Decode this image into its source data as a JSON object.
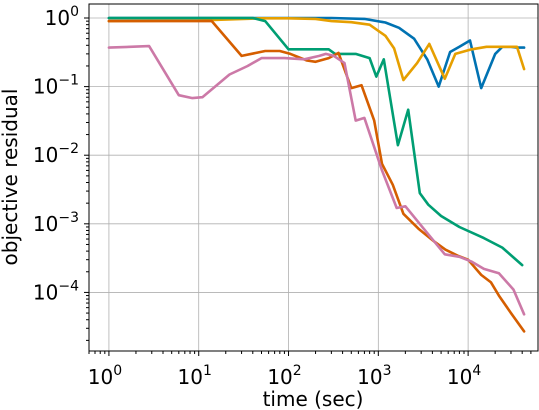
{
  "chart_data": {
    "type": "line",
    "xlabel": "time (sec)",
    "ylabel": "objective residual",
    "xscale": "log",
    "yscale": "log",
    "xlim": [
      0.6,
      60000
    ],
    "ylim": [
      1.4e-05,
      1.6
    ],
    "grid": true,
    "x_ticks": [
      {
        "base": "10",
        "exp": "0",
        "value": 1
      },
      {
        "base": "10",
        "exp": "1",
        "value": 10
      },
      {
        "base": "10",
        "exp": "2",
        "value": 100
      },
      {
        "base": "10",
        "exp": "3",
        "value": 1000
      },
      {
        "base": "10",
        "exp": "4",
        "value": 10000
      }
    ],
    "y_ticks": [
      {
        "base": "10",
        "exp": "0",
        "value": 1
      },
      {
        "base": "10",
        "exp": "−1",
        "value": 0.1
      },
      {
        "base": "10",
        "exp": "−2",
        "value": 0.01
      },
      {
        "base": "10",
        "exp": "−3",
        "value": 0.001
      },
      {
        "base": "10",
        "exp": "−4",
        "value": 0.0001
      }
    ],
    "series": [
      {
        "color": "#0072b2",
        "points": [
          [
            1,
            1.0
          ],
          [
            30,
            1.0
          ],
          [
            100,
            1.0
          ],
          [
            300,
            1.0
          ],
          [
            700,
            0.97
          ],
          [
            1200,
            0.86
          ],
          [
            1700,
            0.72
          ],
          [
            2500,
            0.5
          ],
          [
            3500,
            0.25
          ],
          [
            4700,
            0.1
          ],
          [
            6300,
            0.32
          ],
          [
            8000,
            0.38
          ],
          [
            10500,
            0.47
          ],
          [
            14000,
            0.095
          ],
          [
            20000,
            0.3
          ],
          [
            24000,
            0.38
          ],
          [
            30000,
            0.38
          ],
          [
            35000,
            0.37
          ],
          [
            42000,
            0.37
          ]
        ]
      },
      {
        "color": "#e69f00",
        "points": [
          [
            1,
            0.9
          ],
          [
            10,
            0.92
          ],
          [
            50,
            0.99
          ],
          [
            100,
            0.99
          ],
          [
            200,
            0.97
          ],
          [
            300,
            0.9
          ],
          [
            500,
            0.87
          ],
          [
            800,
            0.8
          ],
          [
            1200,
            0.55
          ],
          [
            1500,
            0.36
          ],
          [
            1900,
            0.125
          ],
          [
            2700,
            0.22
          ],
          [
            3700,
            0.42
          ],
          [
            5500,
            0.13
          ],
          [
            7200,
            0.3
          ],
          [
            11000,
            0.35
          ],
          [
            16000,
            0.38
          ],
          [
            27000,
            0.38
          ],
          [
            35000,
            0.38
          ],
          [
            42000,
            0.18
          ]
        ]
      },
      {
        "color": "#009e73",
        "points": [
          [
            1,
            1.0
          ],
          [
            10,
            1.0
          ],
          [
            40,
            1.0
          ],
          [
            55,
            0.9
          ],
          [
            100,
            0.35
          ],
          [
            180,
            0.35
          ],
          [
            280,
            0.35
          ],
          [
            330,
            0.3
          ],
          [
            450,
            0.3
          ],
          [
            560,
            0.3
          ],
          [
            800,
            0.26
          ],
          [
            950,
            0.14
          ],
          [
            1150,
            0.25
          ],
          [
            1650,
            0.014
          ],
          [
            2150,
            0.046
          ],
          [
            2900,
            0.0028
          ],
          [
            3600,
            0.0019
          ],
          [
            5000,
            0.0013
          ],
          [
            8000,
            0.0009
          ],
          [
            15000,
            0.00062
          ],
          [
            24000,
            0.00045
          ],
          [
            40000,
            0.00025
          ]
        ]
      },
      {
        "color": "#d55e00",
        "points": [
          [
            1,
            0.9
          ],
          [
            14,
            0.9
          ],
          [
            30,
            0.28
          ],
          [
            55,
            0.33
          ],
          [
            80,
            0.33
          ],
          [
            105,
            0.3
          ],
          [
            160,
            0.24
          ],
          [
            200,
            0.23
          ],
          [
            280,
            0.26
          ],
          [
            360,
            0.31
          ],
          [
            500,
            0.095
          ],
          [
            650,
            0.105
          ],
          [
            900,
            0.032
          ],
          [
            1100,
            0.0075
          ],
          [
            1450,
            0.0037
          ],
          [
            1900,
            0.0014
          ],
          [
            2800,
            0.00085
          ],
          [
            4200,
            0.00055
          ],
          [
            5600,
            0.00042
          ],
          [
            7800,
            0.00034
          ],
          [
            10000,
            0.0003
          ],
          [
            14000,
            0.00018
          ],
          [
            18000,
            0.00014
          ],
          [
            22000,
            9e-05
          ],
          [
            30000,
            5e-05
          ],
          [
            42000,
            2.7e-05
          ]
        ]
      },
      {
        "color": "#cc79a7",
        "points": [
          [
            1,
            0.37
          ],
          [
            2.8,
            0.39
          ],
          [
            6,
            0.075
          ],
          [
            8.5,
            0.068
          ],
          [
            11,
            0.07
          ],
          [
            22,
            0.15
          ],
          [
            35,
            0.2
          ],
          [
            50,
            0.26
          ],
          [
            90,
            0.26
          ],
          [
            150,
            0.25
          ],
          [
            220,
            0.28
          ],
          [
            260,
            0.3
          ],
          [
            320,
            0.28
          ],
          [
            420,
            0.22
          ],
          [
            560,
            0.032
          ],
          [
            700,
            0.035
          ],
          [
            1100,
            0.006
          ],
          [
            1600,
            0.0017
          ],
          [
            2000,
            0.0018
          ],
          [
            3200,
            0.00085
          ],
          [
            5500,
            0.00036
          ],
          [
            8000,
            0.00033
          ],
          [
            11000,
            0.00028
          ],
          [
            15000,
            0.00022
          ],
          [
            22000,
            0.00019
          ],
          [
            32000,
            0.00011
          ],
          [
            42000,
            4.8e-05
          ]
        ]
      }
    ]
  }
}
